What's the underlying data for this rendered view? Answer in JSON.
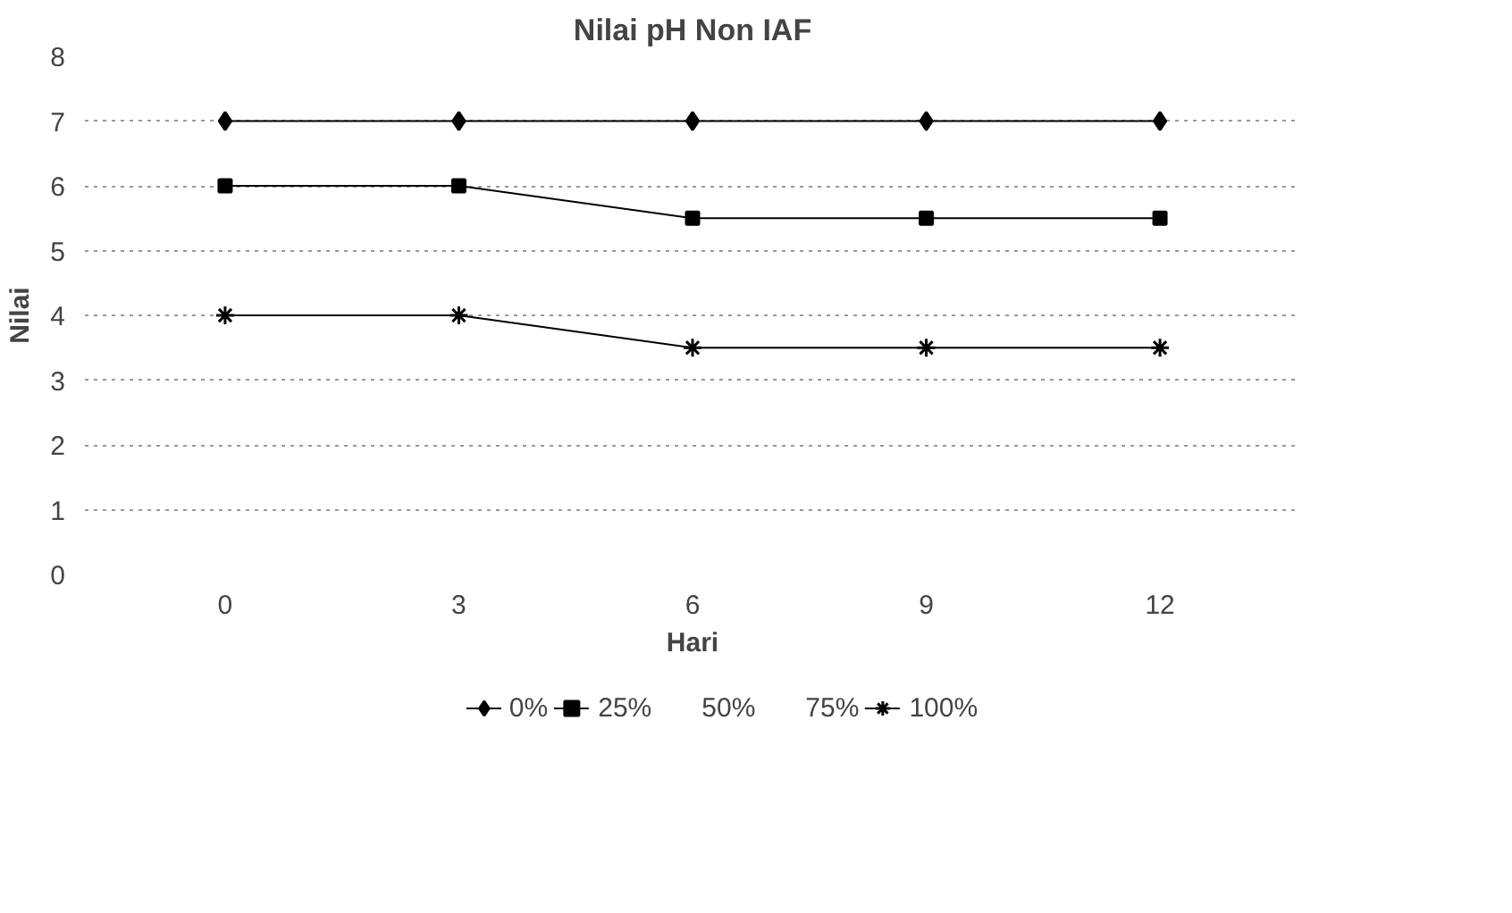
{
  "chart_data": {
    "type": "line",
    "title": "Nilai pH Non IAF",
    "xlabel": "Hari",
    "ylabel": "Nilai",
    "categories": [
      "0",
      "3",
      "6",
      "9",
      "12"
    ],
    "series": [
      {
        "name": "0%",
        "color": "#000000",
        "marker": "diamond",
        "values": [
          7,
          7,
          7,
          7,
          7
        ]
      },
      {
        "name": "25%",
        "color": "#000000",
        "marker": "square",
        "values": [
          6,
          6,
          5.5,
          5.5,
          5.5
        ]
      },
      {
        "name": "50%",
        "marker": "none",
        "values": [
          null,
          null,
          null,
          null,
          null
        ]
      },
      {
        "name": "75%",
        "marker": "none",
        "values": [
          null,
          null,
          null,
          null,
          null
        ]
      },
      {
        "name": "100%",
        "color": "#000000",
        "marker": "cross",
        "values": [
          4,
          4,
          3.5,
          3.5,
          3.5
        ]
      }
    ],
    "ylim": [
      0,
      8
    ],
    "yticks": [
      0,
      1,
      2,
      3,
      4,
      5,
      6,
      7,
      8
    ],
    "grid": "y",
    "legend": "bottom",
    "line_style": "solid"
  }
}
